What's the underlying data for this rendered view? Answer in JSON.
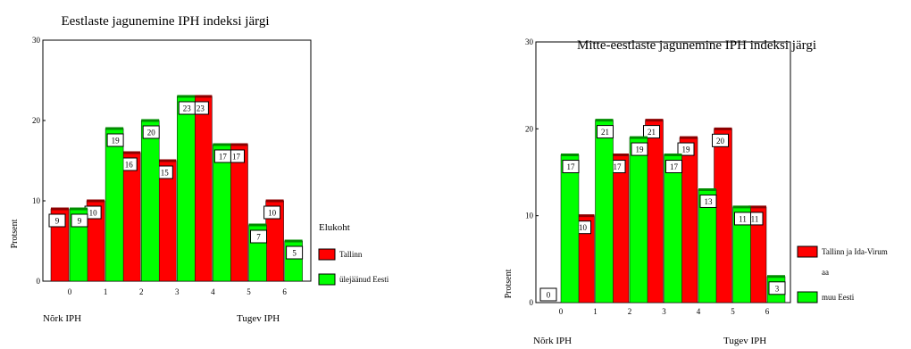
{
  "chart_data": [
    {
      "type": "bar",
      "title": "Eestlaste jagunemine IPH indeksi järgi",
      "ylabel": "Protsent",
      "ylim": [
        0,
        30
      ],
      "yticks": [
        0,
        10,
        20,
        30
      ],
      "categories": [
        "0",
        "1",
        "2",
        "3",
        "4",
        "5",
        "6"
      ],
      "left_note": "Nõrk IPH",
      "right_note": "Tugev IPH",
      "legend_title": "Elukoht",
      "legend_position": "right",
      "grid": false,
      "series": [
        {
          "name": "Tallinn",
          "color": "#ff0000",
          "values": [
            9,
            10,
            16,
            15,
            23,
            17,
            10
          ]
        },
        {
          "name": "ülejäänud Eesti",
          "color": "#00ff00",
          "values": [
            9,
            19,
            20,
            23,
            17,
            7,
            5
          ]
        }
      ]
    },
    {
      "type": "bar",
      "title": "Mitte-eestlaste jagunemine IPH indeksi järgi",
      "ylabel": "Protsent",
      "ylim": [
        0,
        30
      ],
      "yticks": [
        0,
        10,
        20,
        30
      ],
      "categories": [
        "0",
        "1",
        "2",
        "3",
        "4",
        "5",
        "6"
      ],
      "left_note": "Nõrk IPH",
      "right_note": "Tugev IPH",
      "legend_title": "",
      "legend_position": "right",
      "grid": false,
      "series": [
        {
          "name": "Tallinn ja Ida-Virum aa",
          "name_lines": [
            "Tallinn ja Ida-Virum",
            "aa"
          ],
          "color": "#ff0000",
          "values": [
            0,
            10,
            17,
            21,
            19,
            20,
            11
          ]
        },
        {
          "name": "muu Eesti",
          "color": "#00ff00",
          "values": [
            17,
            21,
            19,
            17,
            13,
            11,
            3
          ]
        }
      ]
    }
  ]
}
